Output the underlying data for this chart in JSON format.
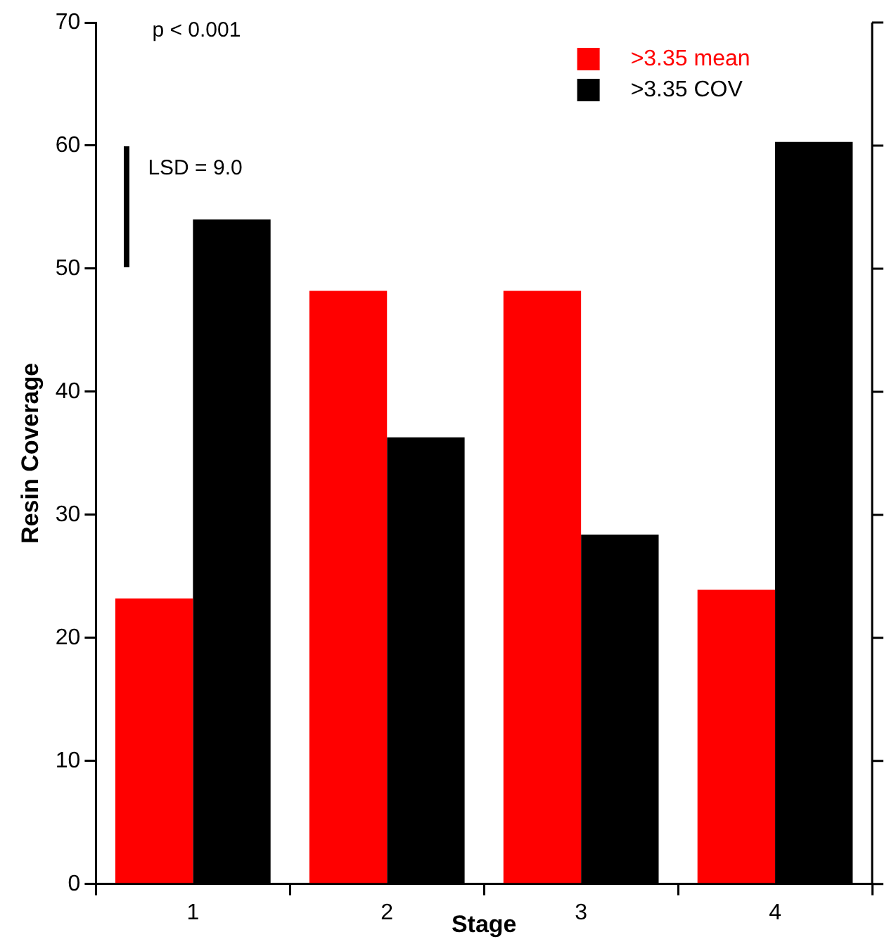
{
  "chart_data": {
    "type": "bar",
    "xlabel": "Stage",
    "ylabel": "Resin Coverage",
    "categories": [
      "1",
      "2",
      "3",
      "4"
    ],
    "series": [
      {
        "name": ">3.35 mean",
        "color": "#ff0000",
        "values": [
          23.2,
          48.2,
          48.2,
          23.9
        ]
      },
      {
        "name": ">3.35 COV",
        "color": "#000000",
        "values": [
          54.0,
          36.3,
          28.4,
          60.3
        ]
      }
    ],
    "ylim": [
      0,
      70
    ],
    "yticks": [
      0,
      10,
      20,
      30,
      40,
      50,
      60,
      70
    ],
    "grid": false,
    "legend": "top right",
    "annotations": [
      "p < 0.001",
      "LSD = 9.0"
    ]
  }
}
